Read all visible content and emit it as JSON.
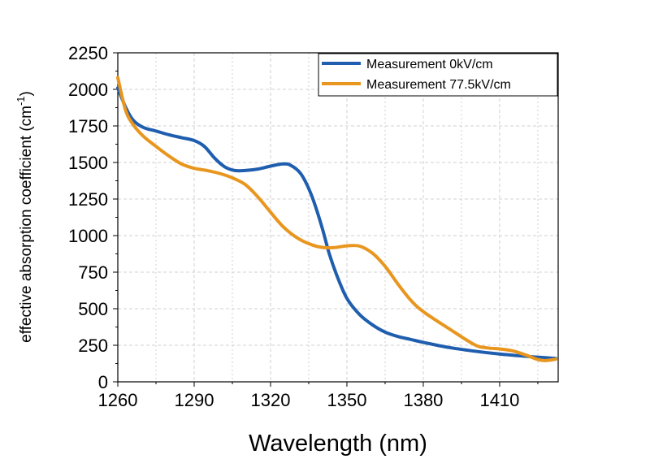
{
  "chart_data": {
    "type": "line",
    "title": "",
    "xlabel": "Wavelength (nm)",
    "ylabel_main": "effective absorption coefficient (cm",
    "ylabel_sup": "-1",
    "ylabel_tail": ")",
    "xlim": [
      1260,
      1433
    ],
    "ylim": [
      0,
      2250
    ],
    "xticks": [
      1260,
      1290,
      1320,
      1350,
      1380,
      1410
    ],
    "yticks": [
      0,
      250,
      500,
      750,
      1000,
      1250,
      1500,
      1750,
      2000,
      2250
    ],
    "grid": true,
    "legend": "top-right",
    "series": [
      {
        "name": "Measurement 0kV/cm",
        "color": "#1f5eaf",
        "x": [
          1260,
          1263,
          1266,
          1270,
          1275,
          1280,
          1285,
          1290,
          1294,
          1298,
          1302,
          1306,
          1310,
          1315,
          1320,
          1325,
          1328,
          1332,
          1336,
          1340,
          1343,
          1346,
          1350,
          1355,
          1360,
          1365,
          1370,
          1375,
          1380,
          1390,
          1400,
          1410,
          1420,
          1428,
          1432
        ],
        "y": [
          2010,
          1880,
          1790,
          1740,
          1715,
          1690,
          1670,
          1650,
          1610,
          1530,
          1470,
          1445,
          1445,
          1455,
          1475,
          1490,
          1480,
          1420,
          1280,
          1070,
          880,
          730,
          570,
          460,
          390,
          340,
          310,
          290,
          270,
          235,
          210,
          190,
          175,
          165,
          160
        ]
      },
      {
        "name": "Measurement 77.5kV/cm",
        "color": "#e8961e",
        "x": [
          1260,
          1263,
          1266,
          1270,
          1275,
          1280,
          1285,
          1290,
          1295,
          1300,
          1305,
          1310,
          1315,
          1320,
          1325,
          1330,
          1335,
          1340,
          1345,
          1350,
          1355,
          1360,
          1365,
          1370,
          1375,
          1380,
          1390,
          1400,
          1405,
          1410,
          1415,
          1420,
          1425,
          1428,
          1432
        ],
        "y": [
          2080,
          1860,
          1760,
          1680,
          1610,
          1545,
          1490,
          1460,
          1445,
          1425,
          1395,
          1350,
          1265,
          1160,
          1060,
          990,
          945,
          920,
          918,
          930,
          928,
          880,
          790,
          670,
          560,
          480,
          365,
          255,
          232,
          225,
          212,
          185,
          152,
          145,
          155
        ]
      }
    ]
  }
}
